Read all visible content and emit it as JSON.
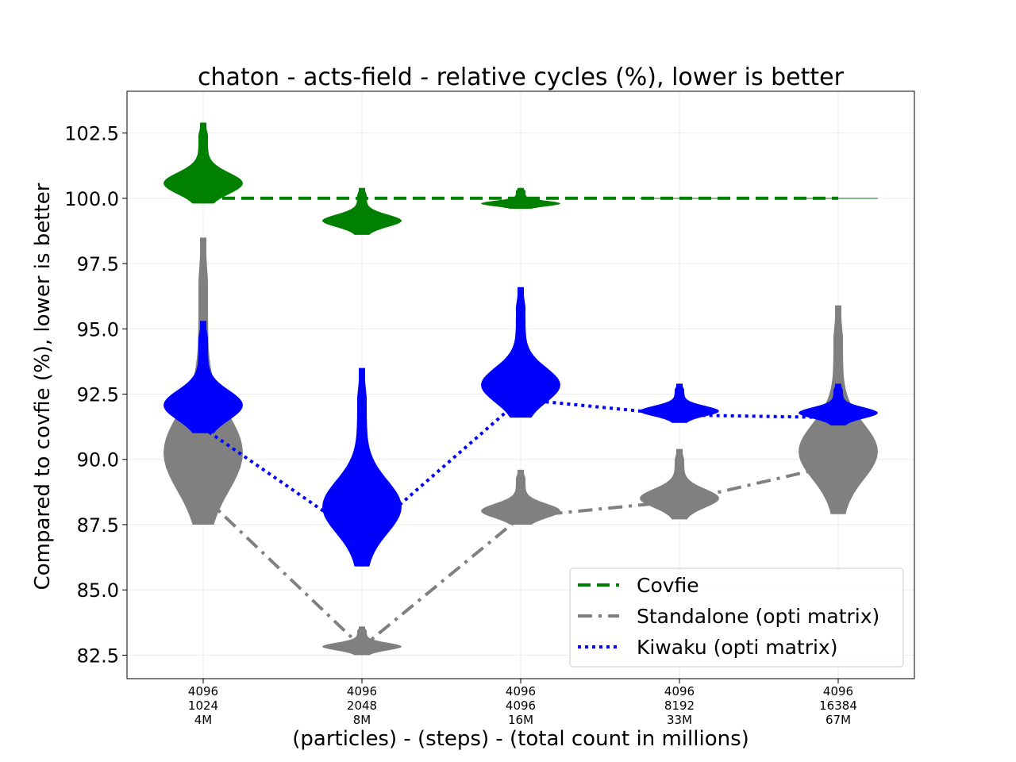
{
  "chart_data": {
    "type": "violin",
    "title": "chaton - acts-field - relative cycles (%), lower is better",
    "xlabel": "(particles) - (steps) - (total count in millions)",
    "ylabel": "Compared to covfie (%), lower is better",
    "ylim": [
      81.6,
      104.1
    ],
    "yticks": [
      "82.5",
      "85.0",
      "87.5",
      "90.0",
      "92.5",
      "95.0",
      "97.5",
      "100.0",
      "102.5"
    ],
    "grid": true,
    "legend_position": "lower right",
    "categories": [
      {
        "particles": "4096",
        "steps": "1024",
        "total": "4M"
      },
      {
        "particles": "4096",
        "steps": "2048",
        "total": "8M"
      },
      {
        "particles": "4096",
        "steps": "4096",
        "total": "16M"
      },
      {
        "particles": "4096",
        "steps": "8192",
        "total": "33M"
      },
      {
        "particles": "4096",
        "steps": "16384",
        "total": "67M"
      }
    ],
    "series": [
      {
        "name": "Covfie",
        "color": "#008000",
        "line_style": "dashed",
        "values": [
          100.0,
          100.0,
          100.0,
          100.0,
          100.0
        ],
        "distributions": [
          {
            "min": 99.8,
            "max": 102.9
          },
          {
            "min": 98.6,
            "max": 100.4
          },
          {
            "min": 99.6,
            "max": 100.4
          },
          {
            "min": 100.0,
            "max": 100.0
          },
          {
            "min": 100.0,
            "max": 100.0
          }
        ]
      },
      {
        "name": "Standalone (opti matrix)",
        "color": "#808080",
        "line_style": "dashdot",
        "values": [
          88.6,
          82.8,
          87.8,
          88.4,
          89.8
        ],
        "distributions": [
          {
            "min": 87.5,
            "max": 98.5
          },
          {
            "min": 82.5,
            "max": 83.6
          },
          {
            "min": 87.5,
            "max": 89.6
          },
          {
            "min": 87.7,
            "max": 90.4
          },
          {
            "min": 87.9,
            "max": 95.9
          }
        ]
      },
      {
        "name": "Kiwaku (opti matrix)",
        "color": "#0000ff",
        "line_style": "dotted",
        "values": [
          91.2,
          87.0,
          92.3,
          91.7,
          91.6
        ],
        "distributions": [
          {
            "min": 91.0,
            "max": 95.3
          },
          {
            "min": 85.9,
            "max": 93.5
          },
          {
            "min": 91.6,
            "max": 96.6
          },
          {
            "min": 91.4,
            "max": 92.9
          },
          {
            "min": 91.3,
            "max": 92.9
          }
        ]
      }
    ]
  }
}
